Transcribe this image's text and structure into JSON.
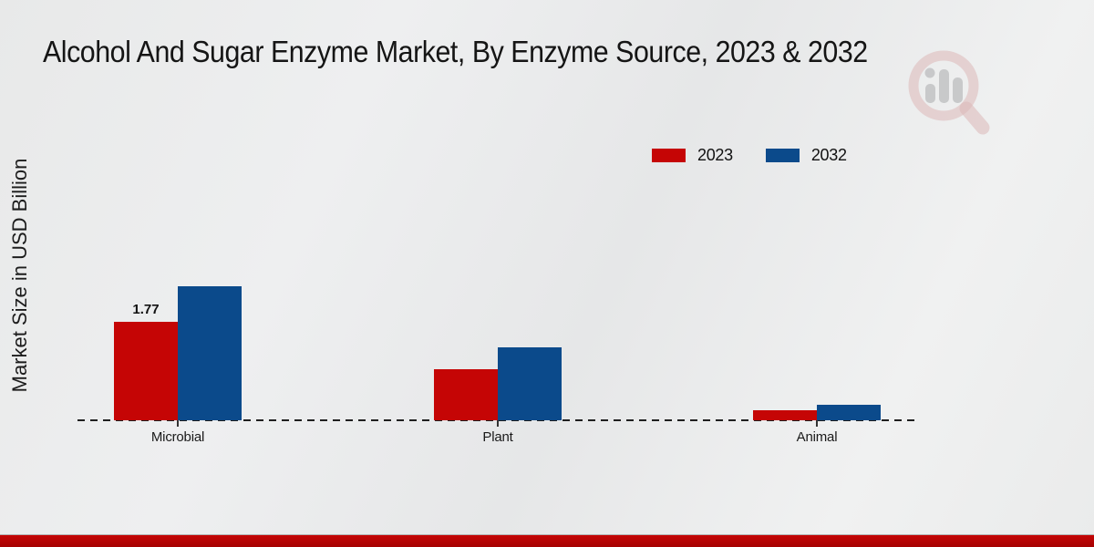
{
  "title": "Alcohol And Sugar Enzyme Market, By Enzyme Source, 2023 & 2032",
  "y_axis_label": "Market Size in USD Billion",
  "legend": {
    "items": [
      {
        "label": "2023",
        "color": "#c50505"
      },
      {
        "label": "2032",
        "color": "#0b4a8b"
      }
    ]
  },
  "chart_data": {
    "type": "bar",
    "title": "Alcohol And Sugar Enzyme Market, By Enzyme Source, 2023 & 2032",
    "xlabel": "",
    "ylabel": "Market Size in USD Billion",
    "categories": [
      "Microbial",
      "Plant",
      "Animal"
    ],
    "series": [
      {
        "name": "2023",
        "color": "#c50505",
        "values": [
          1.77,
          0.92,
          0.18
        ],
        "point_labels": [
          "1.77",
          "",
          ""
        ]
      },
      {
        "name": "2032",
        "color": "#0b4a8b",
        "values": [
          2.41,
          1.31,
          0.28
        ],
        "point_labels": [
          "",
          "",
          ""
        ]
      }
    ],
    "ylim": [
      0,
      2.6
    ],
    "grid": false,
    "legend_position": "top-right",
    "baseline_style": "dashed",
    "y_axis_ticks_visible": false
  },
  "watermark": {
    "name": "magnifier-bar-chart-logo"
  },
  "footer": {
    "accent_color": "#c50505"
  }
}
